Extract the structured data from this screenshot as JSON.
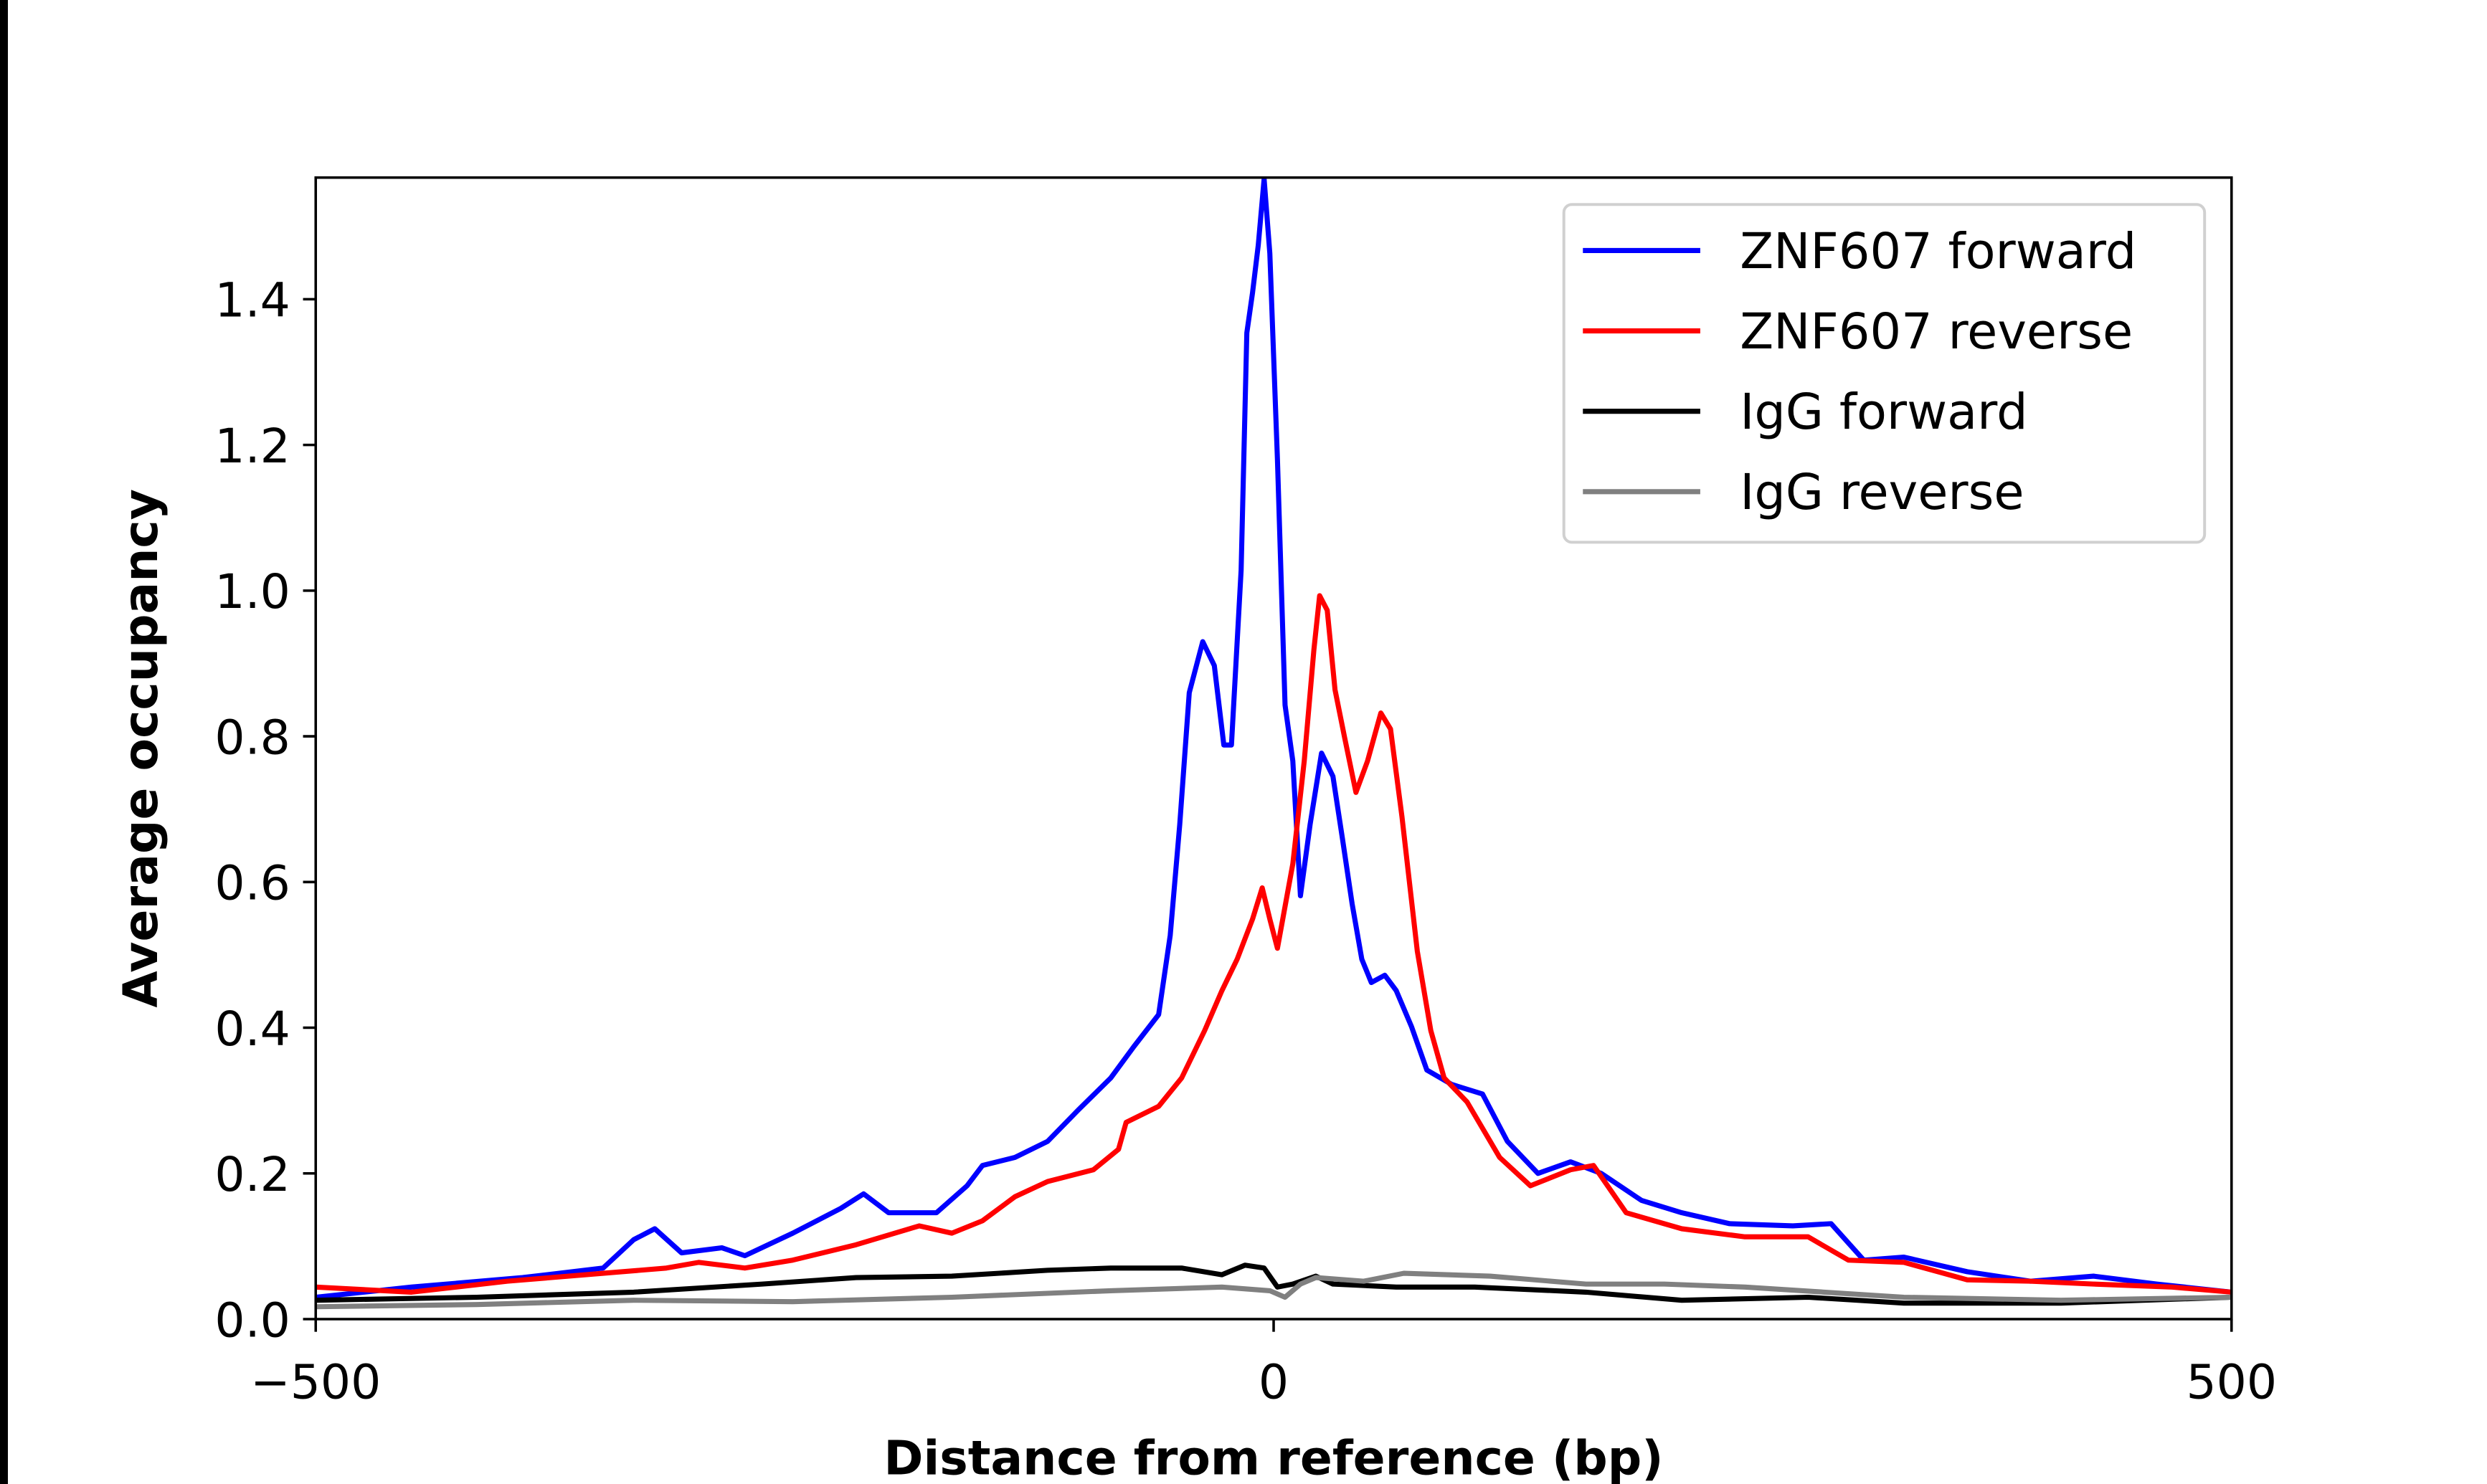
{
  "chart_data": {
    "type": "line",
    "title": "",
    "xlabel": "Distance from reference (bp)",
    "ylabel": "Average occupancy",
    "xlim": [
      -500,
      500
    ],
    "ylim": [
      0,
      1.567
    ],
    "xticks": [
      -500,
      0,
      500
    ],
    "xtick_labels": [
      "−500",
      "0",
      "500"
    ],
    "yticks": [
      0.0,
      0.2,
      0.4,
      0.6,
      0.8,
      1.0,
      1.2,
      1.4
    ],
    "ytick_labels": [
      "0.0",
      "0.2",
      "0.4",
      "0.6",
      "0.8",
      "1.0",
      "1.2",
      "1.4"
    ],
    "grid": false,
    "legend_position": "top-right",
    "series": [
      {
        "name": "ZNF607 forward",
        "color": "#0000ff",
        "x": [
          -500,
          -450,
          -392,
          -350,
          -334,
          -323,
          -309,
          -288,
          -276,
          -251,
          -226,
          -214,
          -201,
          -176,
          -160,
          -152,
          -135,
          -118,
          -102,
          -85,
          -73,
          -60,
          -54,
          -49,
          -44,
          -37,
          -31,
          -26,
          -22,
          -17,
          -14,
          -11,
          -8,
          -5,
          -2,
          2,
          6,
          10,
          14,
          19,
          25,
          31,
          36,
          41,
          46,
          51,
          58,
          64,
          72,
          80,
          93,
          109,
          122,
          138,
          155,
          171,
          192,
          213,
          238,
          271,
          291,
          308,
          329,
          362,
          395,
          428,
          461,
          500
        ],
        "y": [
          0.03,
          0.044,
          0.057,
          0.07,
          0.109,
          0.124,
          0.091,
          0.098,
          0.087,
          0.118,
          0.152,
          0.172,
          0.146,
          0.146,
          0.183,
          0.211,
          0.222,
          0.244,
          0.287,
          0.331,
          0.374,
          0.418,
          0.527,
          0.679,
          0.86,
          0.93,
          0.897,
          0.788,
          0.788,
          1.028,
          1.354,
          1.409,
          1.474,
          1.565,
          1.463,
          1.18,
          0.843,
          0.766,
          0.581,
          0.679,
          0.777,
          0.745,
          0.658,
          0.57,
          0.494,
          0.462,
          0.472,
          0.451,
          0.401,
          0.342,
          0.322,
          0.309,
          0.244,
          0.2,
          0.216,
          0.2,
          0.163,
          0.146,
          0.131,
          0.128,
          0.131,
          0.081,
          0.085,
          0.065,
          0.052,
          0.059,
          0.048,
          0.037
        ]
      },
      {
        "name": "ZNF607 reverse",
        "color": "#ff0000",
        "x": [
          -500,
          -450,
          -400,
          -350,
          -317,
          -300,
          -276,
          -251,
          -218,
          -185,
          -168,
          -152,
          -135,
          -118,
          -94,
          -81,
          -77,
          -60,
          -48,
          -36,
          -27,
          -19,
          -11,
          -6,
          -2,
          2,
          10,
          16,
          21,
          24,
          28,
          32,
          37,
          43,
          49,
          56,
          61,
          67,
          75,
          82,
          89,
          101,
          118,
          134,
          155,
          167,
          184,
          213,
          246,
          279,
          300,
          329,
          362,
          395,
          428,
          469,
          500
        ],
        "y": [
          0.044,
          0.037,
          0.052,
          0.063,
          0.07,
          0.078,
          0.07,
          0.081,
          0.102,
          0.128,
          0.118,
          0.135,
          0.168,
          0.189,
          0.205,
          0.233,
          0.27,
          0.292,
          0.331,
          0.396,
          0.451,
          0.494,
          0.549,
          0.592,
          0.549,
          0.509,
          0.625,
          0.766,
          0.919,
          0.993,
          0.973,
          0.864,
          0.799,
          0.723,
          0.766,
          0.832,
          0.81,
          0.69,
          0.505,
          0.396,
          0.331,
          0.298,
          0.222,
          0.183,
          0.205,
          0.211,
          0.146,
          0.124,
          0.113,
          0.113,
          0.081,
          0.078,
          0.054,
          0.052,
          0.048,
          0.044,
          0.037
        ]
      },
      {
        "name": "IgG forward",
        "color": "#000000",
        "x": [
          -500,
          -416,
          -334,
          -267,
          -218,
          -168,
          -118,
          -85,
          -48,
          -27,
          -15,
          -5,
          2,
          10,
          22,
          31,
          64,
          105,
          163,
          213,
          279,
          329,
          411,
          500
        ],
        "y": [
          0.026,
          0.03,
          0.037,
          0.048,
          0.057,
          0.059,
          0.067,
          0.07,
          0.07,
          0.061,
          0.074,
          0.07,
          0.044,
          0.048,
          0.059,
          0.048,
          0.044,
          0.044,
          0.037,
          0.026,
          0.03,
          0.022,
          0.022,
          0.03
        ]
      },
      {
        "name": "IgG reverse",
        "color": "#808080",
        "x": [
          -500,
          -416,
          -334,
          -251,
          -168,
          -85,
          -27,
          -2,
          6,
          14,
          22,
          47,
          68,
          113,
          163,
          204,
          246,
          329,
          411,
          500
        ],
        "y": [
          0.017,
          0.02,
          0.026,
          0.024,
          0.03,
          0.039,
          0.044,
          0.039,
          0.03,
          0.048,
          0.057,
          0.052,
          0.063,
          0.059,
          0.048,
          0.048,
          0.044,
          0.03,
          0.026,
          0.03
        ]
      }
    ]
  }
}
